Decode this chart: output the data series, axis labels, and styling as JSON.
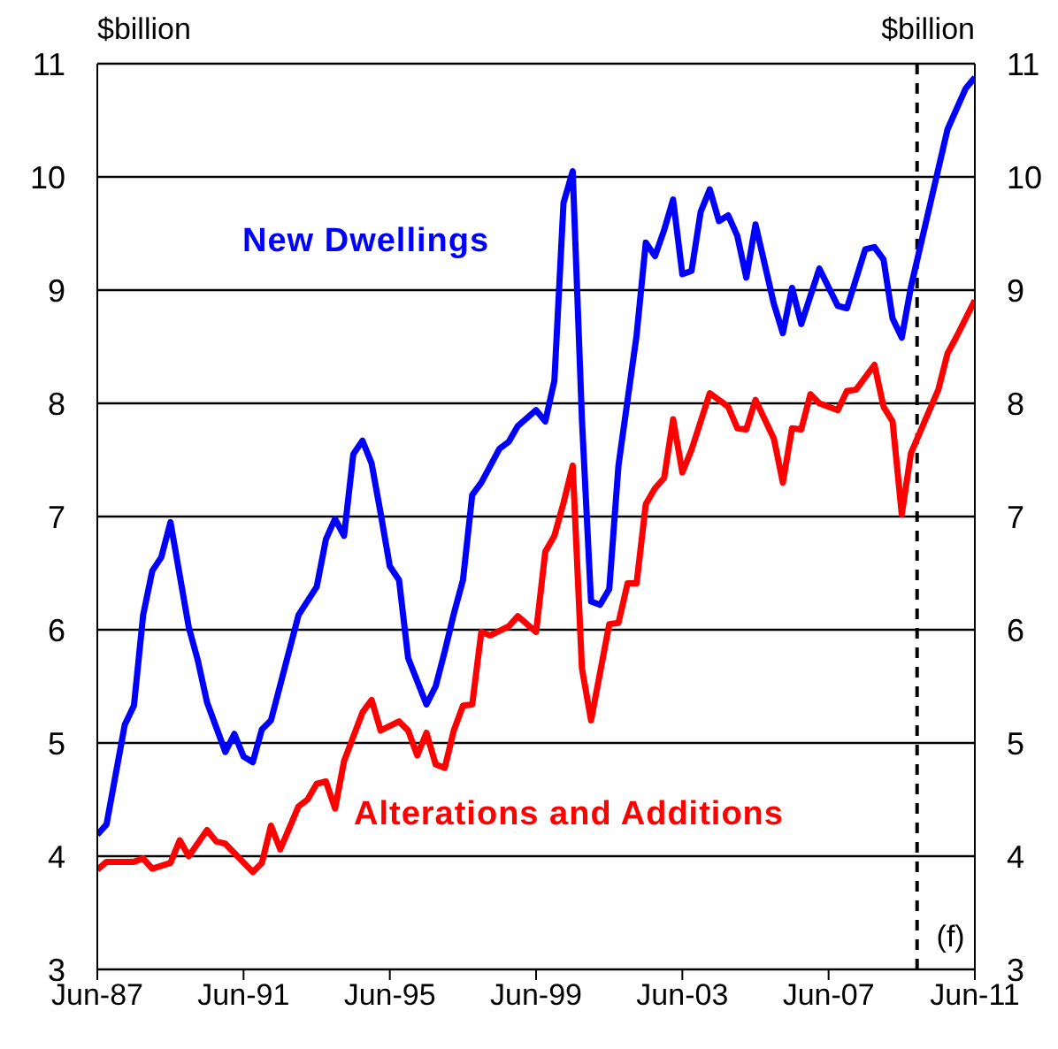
{
  "chart_data": {
    "type": "line",
    "ylabel": "$billion",
    "y2label": "$billion",
    "xlim": [
      "1987-06",
      "2011-06"
    ],
    "xticks": [
      {
        "value": "1987-06",
        "label": "Jun-87"
      },
      {
        "value": "1991-06",
        "label": "Jun-91"
      },
      {
        "value": "1995-06",
        "label": "Jun-95"
      },
      {
        "value": "1999-06",
        "label": "Jun-99"
      },
      {
        "value": "2003-06",
        "label": "Jun-03"
      },
      {
        "value": "2007-06",
        "label": "Jun-07"
      },
      {
        "value": "2011-06",
        "label": "Jun-11"
      }
    ],
    "ylim": [
      3,
      11
    ],
    "yticks": [
      3,
      4,
      5,
      6,
      7,
      8,
      9,
      10,
      11
    ],
    "y2lim": [
      3,
      11
    ],
    "y2ticks": [
      3,
      4,
      5,
      6,
      7,
      8,
      9,
      10,
      11
    ],
    "grid": "y",
    "legend": false,
    "marker": "none",
    "line_style": "solid",
    "ref_lines": [
      {
        "axis": "x",
        "value": "2009-11",
        "label": "(f)",
        "color": "#000000",
        "line_style": "dashed"
      }
    ],
    "series": [
      {
        "name": "New Dwellings",
        "color": "#0000ff",
        "x": [
          "1987-06",
          "1987-09",
          "1988-03",
          "1988-06",
          "1988-09",
          "1988-12",
          "1989-03",
          "1989-06",
          "1989-12",
          "1990-03",
          "1990-06",
          "1990-12",
          "1991-03",
          "1991-06",
          "1991-09",
          "1991-12",
          "1992-03",
          "1992-12",
          "1993-06",
          "1993-09",
          "1993-12",
          "1994-03",
          "1994-06",
          "1994-09",
          "1994-12",
          "1995-03",
          "1995-06",
          "1995-09",
          "1995-12",
          "1996-06",
          "1996-09",
          "1996-12",
          "1997-03",
          "1997-06",
          "1997-09",
          "1997-12",
          "1998-06",
          "1998-09",
          "1998-12",
          "1999-06",
          "1999-09",
          "1999-12",
          "2000-03",
          "2000-06",
          "2000-09",
          "2000-12",
          "2001-03",
          "2001-06",
          "2001-09",
          "2002-03",
          "2002-06",
          "2002-09",
          "2002-12",
          "2003-03",
          "2003-06",
          "2003-09",
          "2003-12",
          "2004-03",
          "2004-06",
          "2004-09",
          "2004-12",
          "2005-03",
          "2005-06",
          "2005-12",
          "2006-03",
          "2006-06",
          "2006-09",
          "2007-03",
          "2007-09",
          "2007-12",
          "2008-06",
          "2008-09",
          "2008-12",
          "2009-03",
          "2009-06",
          "2009-09",
          "2010-09",
          "2011-03",
          "2011-06"
        ],
        "values": [
          4.19,
          4.28,
          5.16,
          5.33,
          6.13,
          6.52,
          6.64,
          6.95,
          6.02,
          5.73,
          5.36,
          4.92,
          5.08,
          4.88,
          4.83,
          5.12,
          5.2,
          6.13,
          6.38,
          6.8,
          6.98,
          6.83,
          7.55,
          7.67,
          7.47,
          7.03,
          6.56,
          6.44,
          5.75,
          5.34,
          5.5,
          5.81,
          6.14,
          6.44,
          7.19,
          7.3,
          7.6,
          7.66,
          7.8,
          7.94,
          7.84,
          8.2,
          9.77,
          10.05,
          7.86,
          6.25,
          6.22,
          6.36,
          7.45,
          8.6,
          9.42,
          9.3,
          9.53,
          9.8,
          9.14,
          9.17,
          9.69,
          9.89,
          9.61,
          9.66,
          9.48,
          9.11,
          9.58,
          8.88,
          8.62,
          9.02,
          8.7,
          9.19,
          8.86,
          8.84,
          9.36,
          9.38,
          9.27,
          8.75,
          8.58,
          9.03,
          10.42,
          10.78,
          10.88
        ]
      },
      {
        "name": "Alterations and Additions",
        "color": "#ff0000",
        "x": [
          "1987-06",
          "1987-09",
          "1988-06",
          "1988-09",
          "1988-12",
          "1989-06",
          "1989-09",
          "1989-12",
          "1990-06",
          "1990-09",
          "1990-12",
          "1991-09",
          "1991-12",
          "1992-03",
          "1992-06",
          "1992-09",
          "1992-12",
          "1993-03",
          "1993-06",
          "1993-09",
          "1993-12",
          "1994-03",
          "1994-09",
          "1994-12",
          "1995-03",
          "1995-09",
          "1995-12",
          "1996-03",
          "1996-06",
          "1996-09",
          "1996-12",
          "1997-03",
          "1997-06",
          "1997-09",
          "1997-12",
          "1998-03",
          "1998-09",
          "1998-12",
          "1999-06",
          "1999-09",
          "1999-12",
          "2000-03",
          "2000-06",
          "2000-09",
          "2000-12",
          "2001-06",
          "2001-09",
          "2001-12",
          "2002-03",
          "2002-06",
          "2002-09",
          "2002-12",
          "2003-03",
          "2003-06",
          "2003-09",
          "2004-03",
          "2004-09",
          "2004-12",
          "2005-03",
          "2005-06",
          "2005-12",
          "2006-03",
          "2006-06",
          "2006-09",
          "2006-12",
          "2007-03",
          "2007-09",
          "2007-12",
          "2008-03",
          "2008-09",
          "2008-12",
          "2009-03",
          "2009-06",
          "2009-09",
          "2010-06",
          "2010-09",
          "2010-12",
          "2011-06"
        ],
        "values": [
          3.88,
          3.95,
          3.95,
          3.98,
          3.89,
          3.94,
          4.14,
          4.0,
          4.23,
          4.13,
          4.11,
          3.86,
          3.94,
          4.27,
          4.06,
          4.25,
          4.44,
          4.5,
          4.64,
          4.66,
          4.42,
          4.84,
          5.27,
          5.38,
          5.11,
          5.19,
          5.11,
          4.89,
          5.09,
          4.81,
          4.78,
          5.11,
          5.33,
          5.34,
          5.98,
          5.95,
          6.03,
          6.12,
          5.98,
          6.69,
          6.83,
          7.12,
          7.45,
          5.66,
          5.2,
          6.05,
          6.06,
          6.41,
          6.41,
          7.11,
          7.25,
          7.34,
          7.86,
          7.39,
          7.59,
          8.09,
          7.97,
          7.78,
          7.77,
          8.03,
          7.69,
          7.3,
          7.78,
          7.77,
          8.08,
          8.0,
          7.94,
          8.11,
          8.12,
          8.34,
          7.97,
          7.84,
          7.02,
          7.56,
          8.12,
          8.44,
          8.59,
          8.91
        ]
      }
    ]
  }
}
